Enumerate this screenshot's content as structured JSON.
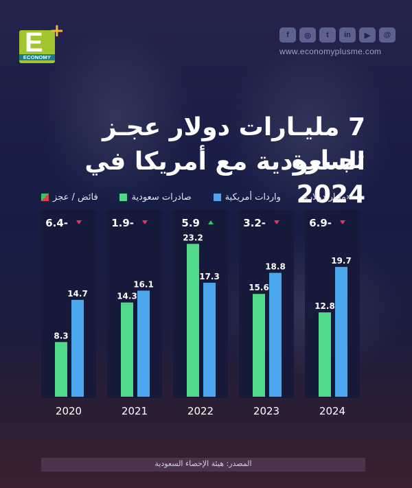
{
  "brand": {
    "logo_letter": "E",
    "logo_word": "ECONOMY",
    "logo_plus": "+",
    "website": "www.economyplusme.com",
    "social_icons": [
      {
        "icon": "facebook-icon",
        "glyph": "f"
      },
      {
        "icon": "instagram-icon",
        "glyph": "◎"
      },
      {
        "icon": "twitter-icon",
        "glyph": "t"
      },
      {
        "icon": "linkedin-icon",
        "glyph": "in"
      },
      {
        "icon": "youtube-icon",
        "glyph": "▶"
      },
      {
        "icon": "threads-icon",
        "glyph": "@"
      }
    ]
  },
  "title_lines": [
    "7 مليـارات دولار عجـز تجـارة",
    "السعودية مع أمريكا في 2024"
  ],
  "legend": {
    "unit": "«مليار دولار»",
    "imports": "واردات أمريكية",
    "exports": "صادرات سعودية",
    "balance": "فائض / عجز"
  },
  "colors": {
    "exports": "#51d889",
    "imports": "#4aa7ee",
    "surplus": "#3cc36a",
    "deficit": "#e43d4e",
    "panel": "#16193a"
  },
  "chart_data": {
    "type": "bar",
    "categories": [
      "2020",
      "2021",
      "2022",
      "2023",
      "2024"
    ],
    "series": [
      {
        "name": "صادرات سعودية",
        "values": [
          8.3,
          14.3,
          23.2,
          15.6,
          12.8
        ]
      },
      {
        "name": "واردات أمريكية",
        "values": [
          14.7,
          16.1,
          17.3,
          18.8,
          19.7
        ]
      }
    ],
    "balance": {
      "values": [
        -6.4,
        -1.9,
        5.9,
        -3.2,
        -6.9
      ],
      "labels": [
        "6.4-",
        "1.9-",
        "5.9",
        "3.2-",
        "6.9-"
      ]
    },
    "ylim": [
      0,
      25
    ]
  },
  "source": "المصدر: هيئة الإحصاء السعودية"
}
